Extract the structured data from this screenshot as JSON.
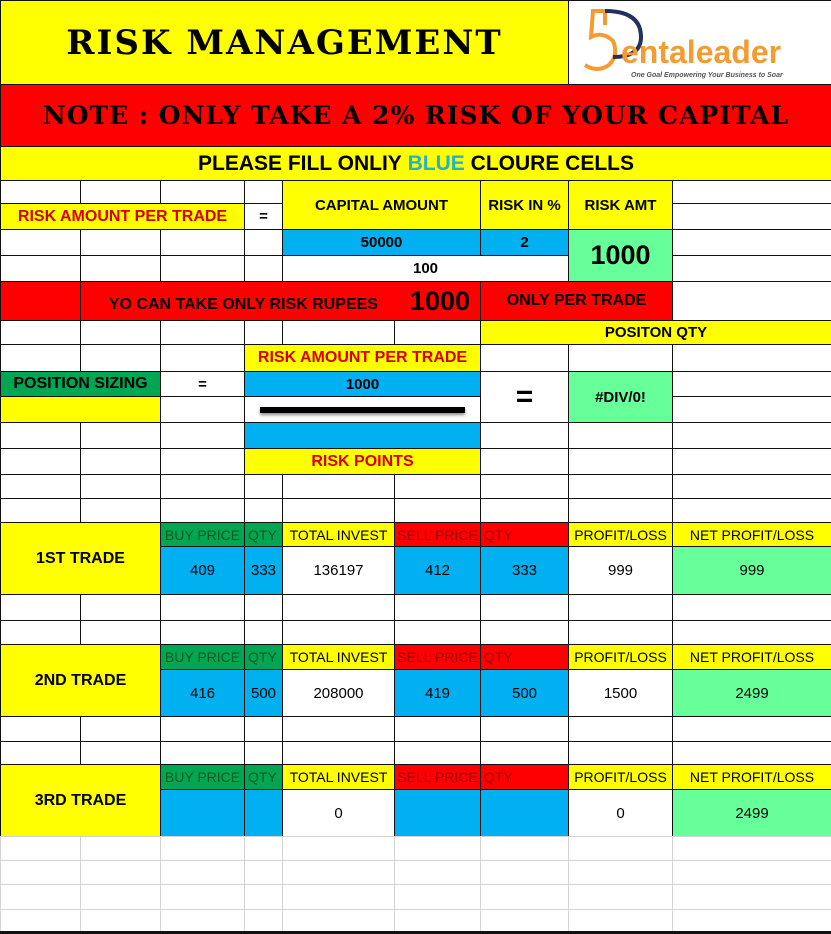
{
  "title": "RISK MANAGEMENT",
  "logo": {
    "brand_mark": "5",
    "brand_text": "entaleader",
    "tagline": "One Goal Empowering Your Business to Soar",
    "orange": "#f39c32",
    "navy": "#23305f"
  },
  "note": "NOTE : ONLY TAKE A 2% RISK OF YOUR CAPITAL",
  "instruction": {
    "prefix": "PLEASE FILL ONLIY ",
    "highlight": "BLUE",
    "suffix": " CLOURE CELLS"
  },
  "risk_calc": {
    "label": "RISK AMOUNT PER TRADE",
    "equals": "=",
    "capital_header": "CAPITAL AMOUNT",
    "risk_pct_header": "RISK IN %",
    "risk_amt_header": "RISK AMT",
    "capital_value": "50000",
    "risk_pct_value": "2",
    "divisor": "100",
    "risk_amt_value": "1000"
  },
  "banner": {
    "prefix": "YO CAN TAKE ONLY RISK RUPEES",
    "amount": "1000",
    "suffix": "ONLY PER TRADE"
  },
  "position": {
    "qty_header": "POSITON QTY",
    "numerator_label": "RISK AMOUNT PER TRADE",
    "label": "POSITION SIZING",
    "equals": "=",
    "numerator_value": "1000",
    "denominator_value": "",
    "denominator_label": "RISK POINTS",
    "equals2": "=",
    "result": "#DIV/0!"
  },
  "trade_headers": {
    "buy_price": "BUY PRICE",
    "buy_qty": "QTY",
    "total_invest": "TOTAL INVEST",
    "sell_price": "SELL PRICE",
    "sell_qty": "QTY",
    "profit_loss": "PROFIT/LOSS",
    "net_profit_loss": "NET PROFIT/LOSS"
  },
  "trades": [
    {
      "label": "1ST TRADE",
      "buy_price": "409",
      "buy_qty": "333",
      "total_invest": "136197",
      "sell_price": "412",
      "sell_qty": "333",
      "profit_loss": "999",
      "net_profit_loss": "999"
    },
    {
      "label": "2ND TRADE",
      "buy_price": "416",
      "buy_qty": "500",
      "total_invest": "208000",
      "sell_price": "419",
      "sell_qty": "500",
      "profit_loss": "1500",
      "net_profit_loss": "2499"
    },
    {
      "label": "3RD TRADE",
      "buy_price": "",
      "buy_qty": "",
      "total_invest": "0",
      "sell_price": "",
      "sell_qty": "",
      "profit_loss": "0",
      "net_profit_loss": "2499"
    }
  ],
  "colors": {
    "yellow": "#ffff00",
    "red": "#ff0000",
    "input_blue": "#00b0f0",
    "result_green": "#66ff99",
    "header_green": "#00a651"
  }
}
